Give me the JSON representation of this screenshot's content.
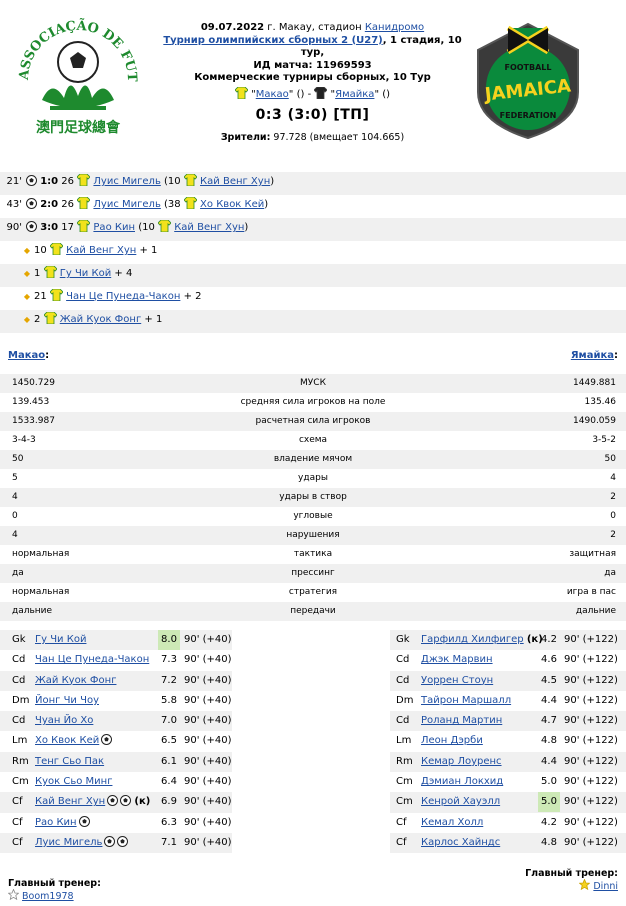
{
  "match": {
    "date": "09.07.2022",
    "location_prefix": "г. Макау, стадион",
    "stadium": "Канидромо",
    "tournament": "Турнир олимпийских сборных 2 (U27)",
    "stage": ", 1 стадия, 10 тур,",
    "id_label": "ИД матча: 11969593",
    "commercial": "Коммерческие турниры сборных, 10 Тур",
    "home_team": "Макао",
    "away_team": "Ямайка",
    "home_paren": "()",
    "away_paren": "()",
    "dash": "-",
    "score": "0:3 (3:0) [ТП]",
    "attendance_label": "Зрители:",
    "attendance_value": "97.728 (вмещает 104.665)"
  },
  "events": [
    {
      "minute": "21'",
      "score": "1:0",
      "num": "26",
      "player": "Луис Мигель",
      "assist_prefix": "(10",
      "assist": "Кай Венг Хун",
      "assist_suffix": ")"
    },
    {
      "minute": "43'",
      "score": "2:0",
      "num": "26",
      "player": "Луис Мигель",
      "assist_prefix": "(38",
      "assist": "Хо Квок Кей",
      "assist_suffix": ")"
    },
    {
      "minute": "90'",
      "score": "3:0",
      "num": "17",
      "player": "Рао Кин",
      "assist_prefix": "(10",
      "assist": "Кай Венг Хун",
      "assist_suffix": ")"
    }
  ],
  "extras": [
    {
      "num": "10",
      "player": "Кай Венг Хун",
      "plus": "+ 1"
    },
    {
      "num": "1",
      "player": "Гу Чи Кой",
      "plus": "+ 4"
    },
    {
      "num": "21",
      "player": "Чан Це Пунеда-Чакон",
      "plus": "+ 2"
    },
    {
      "num": "2",
      "player": "Жай Куок Фонг",
      "plus": "+ 1"
    }
  ],
  "stats_header": {
    "home": "Макао",
    "away": "Ямайка",
    "colon": ":"
  },
  "stats": [
    {
      "home": "1450.729",
      "label": "МУСК",
      "away": "1449.881"
    },
    {
      "home": "139.453",
      "label": "средняя сила игроков на поле",
      "away": "135.46"
    },
    {
      "home": "1533.987",
      "label": "расчетная сила игроков",
      "away": "1490.059"
    },
    {
      "home": "3-4-3",
      "label": "схема",
      "away": "3-5-2"
    },
    {
      "home": "50",
      "label": "владение мячом",
      "away": "50"
    },
    {
      "home": "5",
      "label": "удары",
      "away": "4"
    },
    {
      "home": "4",
      "label": "удары в створ",
      "away": "2"
    },
    {
      "home": "0",
      "label": "угловые",
      "away": "0"
    },
    {
      "home": "4",
      "label": "нарушения",
      "away": "2"
    },
    {
      "home": "нормальная",
      "label": "тактика",
      "away": "защитная"
    },
    {
      "home": "да",
      "label": "прессинг",
      "away": "да"
    },
    {
      "home": "нормальная",
      "label": "стратегия",
      "away": "игра в пас"
    },
    {
      "home": "дальние",
      "label": "передачи",
      "away": "дальние"
    }
  ],
  "lineup_home": [
    {
      "pos": "Gk",
      "name": "Гу Чи Кой",
      "balls": 0,
      "captain": "",
      "rating": "8.0",
      "minutes": "90' (+40)",
      "highlight": true
    },
    {
      "pos": "Cd",
      "name": "Чан Це Пунеда-Чакон",
      "balls": 0,
      "captain": "",
      "rating": "7.3",
      "minutes": "90' (+40)",
      "highlight": false
    },
    {
      "pos": "Cd",
      "name": "Жай Куок Фонг",
      "balls": 0,
      "captain": "",
      "rating": "7.2",
      "minutes": "90' (+40)",
      "highlight": false
    },
    {
      "pos": "Dm",
      "name": "Йонг Чи Чоу",
      "balls": 0,
      "captain": "",
      "rating": "5.8",
      "minutes": "90' (+40)",
      "highlight": false
    },
    {
      "pos": "Cd",
      "name": "Чуан Йо Хо",
      "balls": 0,
      "captain": "",
      "rating": "7.0",
      "minutes": "90' (+40)",
      "highlight": false
    },
    {
      "pos": "Lm",
      "name": "Хо Квок Кей",
      "balls": 1,
      "captain": "",
      "rating": "6.5",
      "minutes": "90' (+40)",
      "highlight": false
    },
    {
      "pos": "Rm",
      "name": "Тенг Сьо Пак",
      "balls": 0,
      "captain": "",
      "rating": "6.1",
      "minutes": "90' (+40)",
      "highlight": false
    },
    {
      "pos": "Cm",
      "name": "Куок Сьо Минг",
      "balls": 0,
      "captain": "",
      "rating": "6.4",
      "minutes": "90' (+40)",
      "highlight": false
    },
    {
      "pos": "Cf",
      "name": "Кай Венг Хун",
      "balls": 2,
      "captain": "(к)",
      "rating": "6.9",
      "minutes": "90' (+40)",
      "highlight": false
    },
    {
      "pos": "Cf",
      "name": "Рао Кин",
      "balls": 1,
      "captain": "",
      "rating": "6.3",
      "minutes": "90' (+40)",
      "highlight": false
    },
    {
      "pos": "Cf",
      "name": "Луис Мигель",
      "balls": 2,
      "captain": "",
      "rating": "7.1",
      "minutes": "90' (+40)",
      "highlight": false
    }
  ],
  "lineup_away": [
    {
      "pos": "Gk",
      "name": "Гарфилд Хилфигер",
      "captain": "(к)",
      "rating": "4.2",
      "minutes": "90' (+122)",
      "highlight": false
    },
    {
      "pos": "Cd",
      "name": "Джэк Марвин",
      "captain": "",
      "rating": "4.6",
      "minutes": "90' (+122)",
      "highlight": false
    },
    {
      "pos": "Cd",
      "name": "Уоррен Стоун",
      "captain": "",
      "rating": "4.5",
      "minutes": "90' (+122)",
      "highlight": false
    },
    {
      "pos": "Dm",
      "name": "Тайрон Маршалл",
      "captain": "",
      "rating": "4.4",
      "minutes": "90' (+122)",
      "highlight": false
    },
    {
      "pos": "Cd",
      "name": "Роланд Мартин",
      "captain": "",
      "rating": "4.7",
      "minutes": "90' (+122)",
      "highlight": false
    },
    {
      "pos": "Lm",
      "name": "Леон Дэрби",
      "captain": "",
      "rating": "4.8",
      "minutes": "90' (+122)",
      "highlight": false
    },
    {
      "pos": "Rm",
      "name": "Кемар Лоуренс",
      "captain": "",
      "rating": "4.4",
      "minutes": "90' (+122)",
      "highlight": false
    },
    {
      "pos": "Cm",
      "name": "Дэмиан Локхид",
      "captain": "",
      "rating": "5.0",
      "minutes": "90' (+122)",
      "highlight": false
    },
    {
      "pos": "Cm",
      "name": "Кенрой Хауэлл",
      "captain": "",
      "rating": "5.0",
      "minutes": "90' (+122)",
      "highlight": true
    },
    {
      "pos": "Cf",
      "name": "Кемал Холл",
      "captain": "",
      "rating": "4.2",
      "minutes": "90' (+122)",
      "highlight": false
    },
    {
      "pos": "Cf",
      "name": "Карлос Хайндс",
      "captain": "",
      "rating": "4.8",
      "minutes": "90' (+122)",
      "highlight": false
    }
  ],
  "coach": {
    "title": "Главный тренер:",
    "home": "Boom1978",
    "away": "Dinni"
  },
  "colors": {
    "link": "#1f4fa3",
    "row_alt": "#f0f0f0",
    "rating_highlight": "#cde9b6",
    "macau_green": "#1e8a2e",
    "jamaica_yellow": "#f6d21e",
    "jamaica_green": "#0a8a3c"
  },
  "icons": {
    "goal": "ball-icon",
    "shirt": "shirt-icon",
    "assist": "assist-icon",
    "coach": "star-icon"
  }
}
